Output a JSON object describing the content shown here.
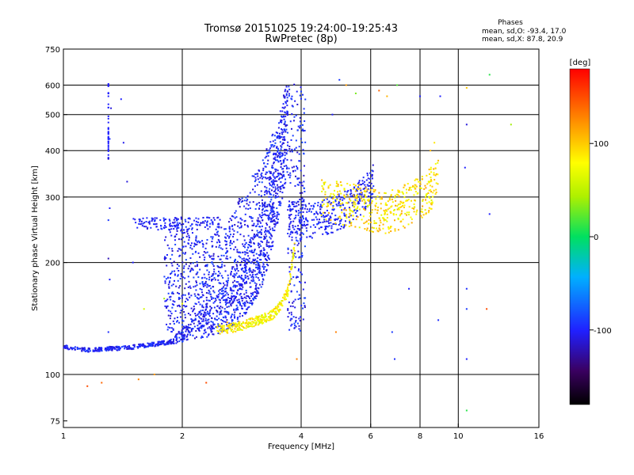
{
  "chart_data": {
    "type": "scatter",
    "title": "Tromsø 20151025 19:24:00–19:25:43",
    "subtitle": "RwPretec (8p)",
    "phase_box": {
      "heading": "Phases",
      "line1": "mean, sd,O:  -93.4, 17.0",
      "line2": "mean, sd,X:  87.8, 20.9"
    },
    "xlabel": "Frequency [MHz]",
    "ylabel": "Stationary phase Virtual Height [km]",
    "x_scale": "log",
    "y_scale": "log",
    "xlim": [
      1,
      16
    ],
    "ylim": [
      72,
      750
    ],
    "x_ticks": [
      1,
      2,
      4,
      6,
      8,
      10,
      16
    ],
    "x_tick_labels": [
      "1",
      "2",
      "4",
      "6",
      "8",
      "10",
      "16"
    ],
    "y_ticks": [
      75,
      100,
      200,
      300,
      400,
      500,
      600,
      750
    ],
    "y_tick_labels": [
      "75",
      "100",
      "200",
      "300",
      "400",
      "500",
      "600",
      "750"
    ],
    "x_gridlines": [
      2,
      4,
      6,
      8,
      10
    ],
    "y_gridlines": [
      100,
      200,
      300,
      400,
      500,
      600
    ],
    "grid": true,
    "colorbar": {
      "label": "[deg]",
      "range": [
        -180,
        180
      ],
      "ticks": [
        100,
        0,
        -100
      ],
      "tick_labels": [
        "100",
        "0",
        "-100"
      ]
    },
    "o_trace": [
      [
        1.0,
        118
      ],
      [
        1.05,
        116
      ],
      [
        1.1,
        115
      ],
      [
        1.2,
        115
      ],
      [
        1.3,
        116
      ],
      [
        1.4,
        116
      ],
      [
        1.5,
        117
      ],
      [
        1.6,
        118
      ],
      [
        1.7,
        119
      ],
      [
        1.8,
        120
      ],
      [
        1.9,
        121
      ],
      [
        2.0,
        122
      ],
      [
        2.1,
        123
      ],
      [
        2.2,
        124
      ],
      [
        2.3,
        126
      ],
      [
        2.4,
        127
      ],
      [
        2.5,
        129
      ],
      [
        2.6,
        132
      ],
      [
        2.7,
        135
      ],
      [
        2.8,
        139
      ],
      [
        2.9,
        145
      ],
      [
        3.0,
        152
      ],
      [
        3.1,
        162
      ],
      [
        3.2,
        175
      ],
      [
        3.3,
        195
      ],
      [
        3.4,
        225
      ],
      [
        3.5,
        260
      ],
      [
        3.6,
        300
      ],
      [
        3.7,
        350
      ]
    ],
    "x_trace": [
      [
        2.45,
        128
      ],
      [
        2.6,
        129
      ],
      [
        2.8,
        131
      ],
      [
        3.0,
        134
      ],
      [
        3.2,
        137
      ],
      [
        3.4,
        141
      ],
      [
        3.5,
        146
      ],
      [
        3.6,
        153
      ],
      [
        3.7,
        162
      ],
      [
        3.75,
        175
      ],
      [
        3.8,
        195
      ],
      [
        3.85,
        215
      ]
    ],
    "f_layer_o": [
      [
        3.7,
        235
      ],
      [
        4.0,
        232
      ],
      [
        4.4,
        233
      ],
      [
        4.8,
        240
      ],
      [
        5.2,
        250
      ],
      [
        5.6,
        265
      ],
      [
        5.9,
        280
      ],
      [
        6.1,
        300
      ]
    ],
    "f_layer_x": [
      [
        4.5,
        285
      ],
      [
        5.0,
        280
      ],
      [
        5.5,
        275
      ],
      [
        6.0,
        270
      ],
      [
        6.5,
        262
      ],
      [
        7.0,
        268
      ],
      [
        7.5,
        280
      ],
      [
        8.0,
        290
      ],
      [
        8.5,
        305
      ],
      [
        8.9,
        330
      ]
    ],
    "spread_f": [
      [
        2.0,
        250
      ],
      [
        2.3,
        230
      ],
      [
        2.6,
        260
      ],
      [
        2.9,
        320
      ],
      [
        3.2,
        380
      ],
      [
        3.4,
        450
      ],
      [
        3.6,
        560
      ],
      [
        3.7,
        610
      ]
    ],
    "scatter_points": [
      [
        1.3,
        600,
        -105
      ],
      [
        1.3,
        560,
        -100
      ],
      [
        1.32,
        520,
        -110
      ],
      [
        1.31,
        430,
        -95
      ],
      [
        1.3,
        380,
        -115
      ],
      [
        1.31,
        280,
        -100
      ],
      [
        1.3,
        260,
        -90
      ],
      [
        1.3,
        205,
        -120
      ],
      [
        1.31,
        180,
        -100
      ],
      [
        1.3,
        130,
        -95
      ],
      [
        1.4,
        550,
        -100
      ],
      [
        1.42,
        420,
        -105
      ],
      [
        1.45,
        330,
        -110
      ],
      [
        1.5,
        200,
        -100
      ],
      [
        1.25,
        95,
        140
      ],
      [
        1.15,
        93,
        150
      ],
      [
        1.55,
        97,
        130
      ],
      [
        1.7,
        100,
        120
      ],
      [
        2.3,
        95,
        150
      ],
      [
        1.6,
        150,
        60
      ],
      [
        1.8,
        160,
        40
      ],
      [
        2.0,
        155,
        70
      ],
      [
        4.8,
        500,
        -100
      ],
      [
        5.0,
        620,
        -90
      ],
      [
        5.2,
        600,
        120
      ],
      [
        5.5,
        570,
        30
      ],
      [
        6.3,
        580,
        140
      ],
      [
        6.6,
        560,
        110
      ],
      [
        7.0,
        600,
        20
      ],
      [
        8.0,
        560,
        -100
      ],
      [
        8.5,
        400,
        110
      ],
      [
        8.7,
        420,
        90
      ],
      [
        9.0,
        560,
        -100
      ],
      [
        10.5,
        590,
        100
      ],
      [
        10.5,
        470,
        -110
      ],
      [
        10.4,
        360,
        -100
      ],
      [
        10.5,
        170,
        -95
      ],
      [
        10.5,
        150,
        -90
      ],
      [
        10.5,
        110,
        -100
      ],
      [
        10.5,
        80,
        10
      ],
      [
        11.8,
        150,
        150
      ],
      [
        12.0,
        640,
        10
      ],
      [
        12.0,
        270,
        -100
      ],
      [
        13.6,
        470,
        40
      ],
      [
        8.9,
        140,
        -95
      ],
      [
        6.8,
        130,
        -90
      ],
      [
        6.9,
        110,
        -95
      ],
      [
        7.5,
        170,
        -100
      ],
      [
        4.9,
        130,
        130
      ],
      [
        3.9,
        110,
        130
      ],
      [
        2.6,
        135,
        100
      ],
      [
        2.6,
        138,
        120
      ]
    ]
  }
}
